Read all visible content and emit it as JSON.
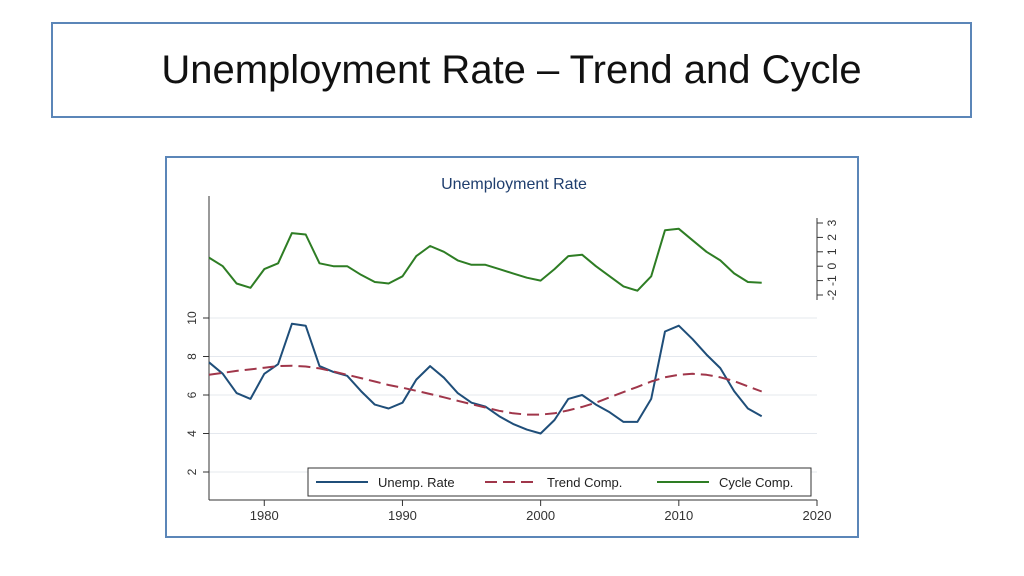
{
  "slide": {
    "title": "Unemployment Rate – Trend and Cycle"
  },
  "chart_data": {
    "type": "line",
    "title": "Unemployment Rate",
    "xlabel": "",
    "ylabel": "",
    "x": [
      1976,
      1977,
      1978,
      1979,
      1980,
      1981,
      1982,
      1983,
      1984,
      1985,
      1986,
      1987,
      1988,
      1989,
      1990,
      1991,
      1992,
      1993,
      1994,
      1995,
      1996,
      1997,
      1998,
      1999,
      2000,
      2001,
      2002,
      2003,
      2004,
      2005,
      2006,
      2007,
      2008,
      2009,
      2010,
      2011,
      2012,
      2013,
      2014,
      2015,
      2016
    ],
    "xlim": [
      1976,
      2020
    ],
    "xticks": [
      "1980",
      "1990",
      "2000",
      "2010",
      "2020"
    ],
    "left_axis": {
      "ylim": [
        1,
        11
      ],
      "ticks": [
        "2",
        "4",
        "6",
        "8",
        "10"
      ]
    },
    "right_axis": {
      "ylim": [
        -2.5,
        3.5
      ],
      "ticks": [
        "-2",
        "-1",
        "0",
        "1",
        "2",
        "3"
      ]
    },
    "grid": true,
    "legend_position": "bottom",
    "series": [
      {
        "name": "Unemp. Rate",
        "axis": "left",
        "color": "#1f4e79",
        "dash": "solid",
        "values": [
          7.7,
          7.1,
          6.1,
          5.8,
          7.1,
          7.6,
          9.7,
          9.6,
          7.5,
          7.2,
          7.0,
          6.2,
          5.5,
          5.3,
          5.6,
          6.8,
          7.5,
          6.9,
          6.1,
          5.6,
          5.4,
          4.9,
          4.5,
          4.2,
          4.0,
          4.7,
          5.8,
          6.0,
          5.5,
          5.1,
          4.6,
          4.6,
          5.8,
          9.3,
          9.6,
          8.9,
          8.1,
          7.4,
          6.2,
          5.3,
          4.9
        ]
      },
      {
        "name": "Trend Comp.",
        "axis": "left",
        "color": "#a0364a",
        "dash": "dashed",
        "values": [
          7.05,
          7.15,
          7.25,
          7.33,
          7.42,
          7.5,
          7.52,
          7.48,
          7.38,
          7.22,
          7.05,
          6.88,
          6.7,
          6.52,
          6.38,
          6.22,
          6.05,
          5.88,
          5.7,
          5.52,
          5.35,
          5.18,
          5.05,
          4.98,
          4.98,
          5.05,
          5.2,
          5.38,
          5.6,
          5.88,
          6.15,
          6.42,
          6.7,
          6.92,
          7.05,
          7.1,
          7.05,
          6.92,
          6.72,
          6.45,
          6.18
        ]
      },
      {
        "name": "Cycle Comp.",
        "axis": "right",
        "color": "#2e7d24",
        "dash": "solid",
        "values": [
          0.6,
          0.0,
          -1.2,
          -1.5,
          -0.2,
          0.2,
          2.3,
          2.2,
          0.2,
          0.0,
          0.0,
          -0.6,
          -1.1,
          -1.2,
          -0.7,
          0.7,
          1.4,
          1.0,
          0.4,
          0.1,
          0.1,
          -0.2,
          -0.5,
          -0.8,
          -1.0,
          -0.2,
          0.7,
          0.8,
          0.0,
          -0.7,
          -1.4,
          -1.7,
          -0.7,
          2.5,
          2.6,
          1.8,
          1.0,
          0.4,
          -0.5,
          -1.1,
          -1.15
        ]
      }
    ]
  }
}
